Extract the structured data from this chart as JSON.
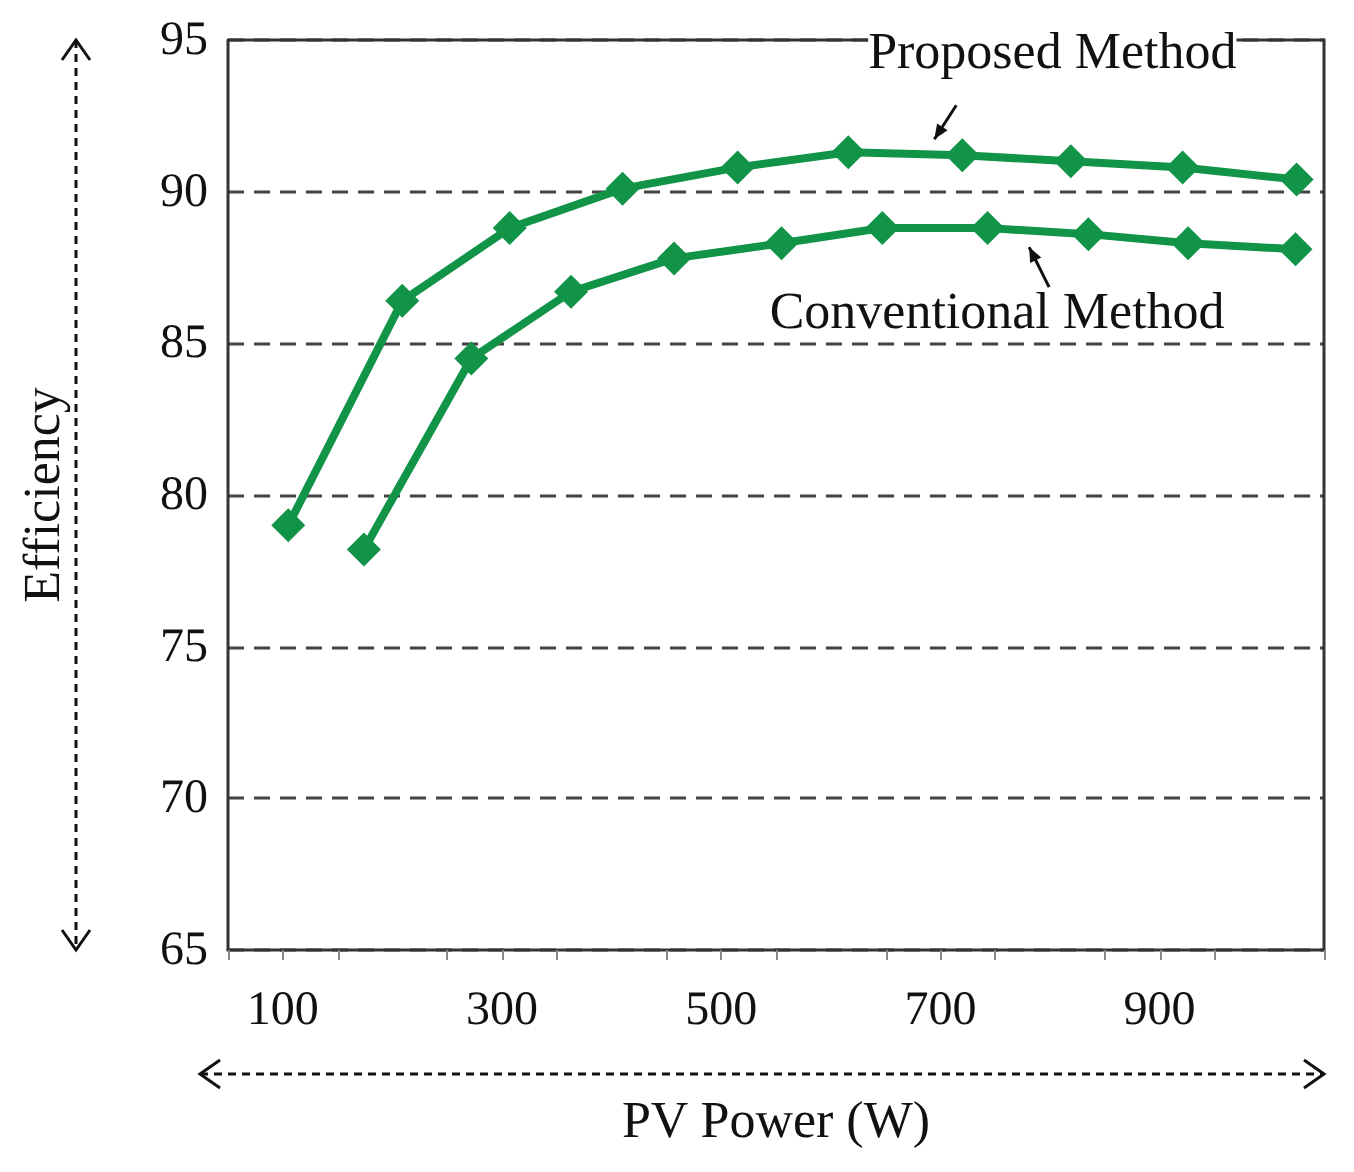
{
  "chart_data": {
    "type": "line",
    "xlabel": "PV Power (W)",
    "ylabel": "Efficiency",
    "xlim": [
      50,
      1050
    ],
    "xticks": [
      {
        "value": 50,
        "label": null
      },
      100,
      {
        "value": 150,
        "label": null
      },
      {
        "value": 250,
        "label": null
      },
      300,
      {
        "value": 350,
        "label": null
      },
      {
        "value": 450,
        "label": null
      },
      500,
      {
        "value": 550,
        "label": null
      },
      {
        "value": 650,
        "label": null
      },
      700,
      {
        "value": 750,
        "label": null
      },
      {
        "value": 850,
        "label": null
      },
      900,
      {
        "value": 950,
        "label": null
      },
      {
        "value": 1050,
        "label": null
      }
    ],
    "ylim": [
      65,
      95
    ],
    "yticks": [
      65,
      70,
      75,
      80,
      85,
      90,
      95
    ],
    "grid": "y",
    "marker": "diamond",
    "line_style": "solid",
    "series": [
      {
        "color": "#119448",
        "x": [
          105,
          209,
          307,
          410,
          515,
          616,
          720,
          819,
          921,
          1025
        ],
        "values": [
          79.0,
          86.4,
          88.8,
          90.1,
          90.8,
          91.3,
          91.2,
          91.0,
          90.8,
          90.4
        ]
      },
      {
        "color": "#119448",
        "x": [
          174,
          272,
          363,
          457,
          555,
          647,
          743,
          835,
          926,
          1024
        ],
        "values": [
          78.2,
          84.5,
          86.7,
          87.8,
          88.3,
          88.8,
          88.8,
          88.6,
          88.3,
          88.1
        ]
      }
    ],
    "annotations": [
      {
        "text": "Proposed Method",
        "x": 720,
        "y": 91.2
      },
      {
        "text": "Conventional Method",
        "x": 770,
        "y": 88.7
      }
    ]
  }
}
